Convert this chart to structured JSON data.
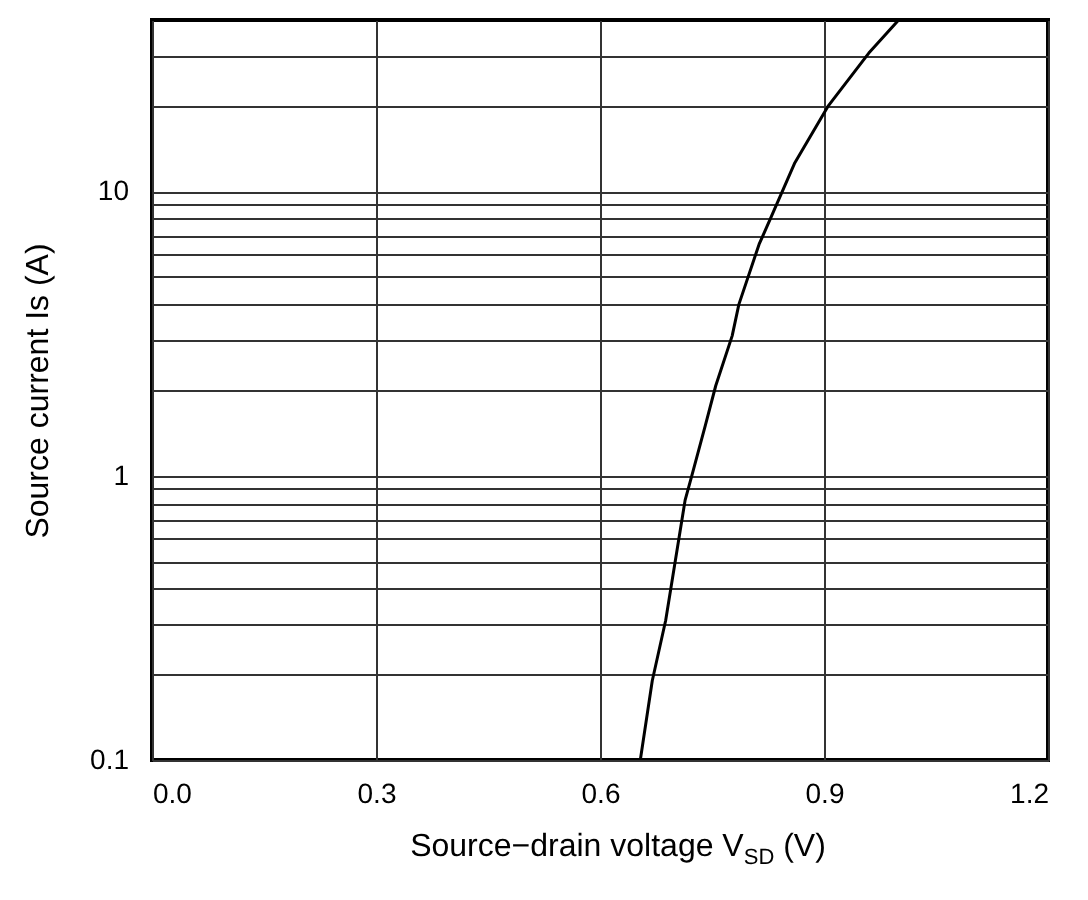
{
  "chart_data": {
    "type": "line",
    "xlabel": "Source−drain voltage V$_{SD}$ (V)",
    "ylabel": "Source current Is (A)",
    "series": [
      {
        "color": "#000000",
        "x": [
          0.654,
          0.67,
          0.688,
          0.714,
          0.723,
          0.741,
          0.755,
          0.777,
          0.786,
          0.813,
          0.83,
          0.861,
          0.906,
          0.96,
          1.0
        ],
        "values": [
          0.1,
          0.19,
          0.31,
          0.82,
          1.0,
          1.5,
          2.07,
          3.1,
          4.0,
          6.5,
          8.2,
          12.6,
          20,
          30.6,
          40
        ]
      }
    ],
    "xlim": [
      0,
      1.2
    ],
    "xticks": [
      {
        "value": 0,
        "label": "0.0"
      },
      0.3,
      0.6,
      0.9,
      {
        "value": 1.2,
        "label": "1.2"
      }
    ],
    "ylim": [
      0.1,
      40
    ],
    "yticks": [
      0.1,
      {
        "value": 0.2,
        "label": null
      },
      {
        "value": 0.3,
        "label": null
      },
      {
        "value": 0.4,
        "label": null
      },
      {
        "value": 0.5,
        "label": null
      },
      {
        "value": 0.6,
        "label": null
      },
      {
        "value": 0.7,
        "label": null
      },
      {
        "value": 0.8,
        "label": null
      },
      {
        "value": 0.9,
        "label": null
      },
      1,
      {
        "value": 2,
        "label": null
      },
      {
        "value": 3,
        "label": null
      },
      {
        "value": 4,
        "label": null
      },
      {
        "value": 5,
        "label": null
      },
      {
        "value": 6,
        "label": null
      },
      {
        "value": 7,
        "label": null
      },
      {
        "value": 8,
        "label": null
      },
      {
        "value": 9,
        "label": null
      },
      10,
      {
        "value": 20,
        "label": null
      },
      {
        "value": 30,
        "label": null
      }
    ],
    "log": true,
    "grid": true,
    "marker": "none",
    "line_style": "solid",
    "legend": false
  }
}
